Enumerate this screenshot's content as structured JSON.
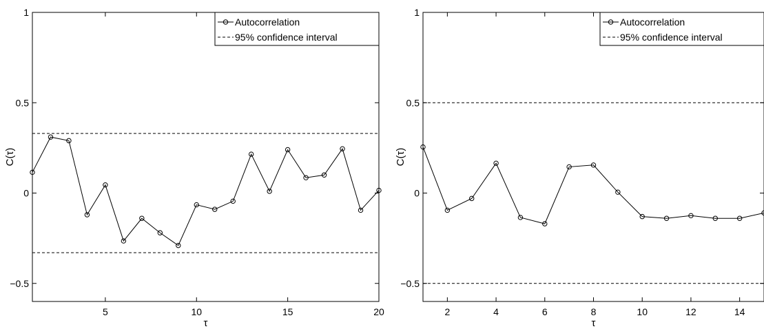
{
  "chart_data": [
    {
      "type": "line",
      "xlabel": "τ",
      "ylabel": "C(τ)",
      "xlim": [
        1,
        20
      ],
      "ylim": [
        -0.6,
        1
      ],
      "xticks": [
        5,
        10,
        15,
        20
      ],
      "yticks": [
        -0.5,
        0,
        0.5,
        1
      ],
      "ytick_labels": [
        "−0.5",
        "0",
        "0.5",
        "1"
      ],
      "grid": false,
      "legend": {
        "placement": "top-right",
        "entries": [
          "Autocorrelation",
          "95% confidence interval"
        ]
      },
      "series": [
        {
          "name": "Autocorrelation",
          "style": "solid-with-circle-markers",
          "x": [
            1,
            2,
            3,
            4,
            5,
            6,
            7,
            8,
            9,
            10,
            11,
            12,
            13,
            14,
            15,
            16,
            17,
            18,
            19,
            20
          ],
          "y": [
            0.115,
            0.31,
            0.29,
            -0.12,
            0.045,
            -0.265,
            -0.14,
            -0.22,
            -0.29,
            -0.065,
            -0.09,
            -0.045,
            0.215,
            0.01,
            0.24,
            0.085,
            0.1,
            0.245,
            -0.095,
            0.015
          ]
        },
        {
          "name": "95% confidence interval",
          "style": "dashed",
          "upper": 0.33,
          "lower": -0.33
        }
      ]
    },
    {
      "type": "line",
      "xlabel": "τ",
      "ylabel": "C(τ)",
      "xlim": [
        1,
        15
      ],
      "ylim": [
        -0.6,
        1
      ],
      "xticks": [
        2,
        4,
        6,
        8,
        10,
        12,
        14
      ],
      "yticks": [
        -0.5,
        0,
        0.5,
        1
      ],
      "ytick_labels": [
        "−0.5",
        "0",
        "0.5",
        "1"
      ],
      "grid": false,
      "legend": {
        "placement": "top-right",
        "entries": [
          "Autocorrelation",
          "95% confidence interval"
        ]
      },
      "series": [
        {
          "name": "Autocorrelation",
          "style": "solid-with-circle-markers",
          "x": [
            1,
            2,
            3,
            4,
            5,
            6,
            7,
            8,
            9,
            10,
            11,
            12,
            13,
            14,
            15
          ],
          "y": [
            0.255,
            -0.095,
            -0.03,
            0.165,
            -0.135,
            -0.17,
            0.145,
            0.155,
            0.005,
            -0.13,
            -0.14,
            -0.125,
            -0.14,
            -0.14,
            -0.11
          ]
        },
        {
          "name": "95% confidence interval",
          "style": "dashed",
          "upper": 0.5,
          "lower": -0.5
        }
      ]
    }
  ]
}
